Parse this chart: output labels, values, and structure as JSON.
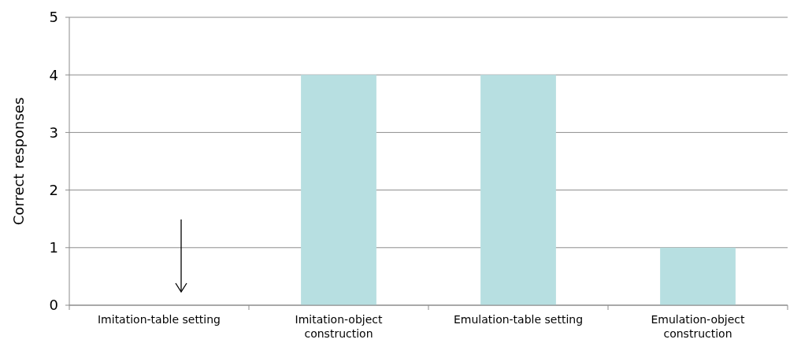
{
  "chart_data": {
    "type": "bar",
    "ylabel": "Correct responses",
    "categories": [
      "Imitation-table setting",
      "Imitation-object construction",
      "Emulation-table setting",
      "Emulation-object construction"
    ],
    "values": [
      0,
      4,
      4,
      1
    ],
    "color": "#b7dfe1",
    "ylim": [
      0,
      5
    ],
    "yticks": [
      0,
      1,
      2,
      3,
      4,
      5
    ],
    "grid": "y"
  }
}
